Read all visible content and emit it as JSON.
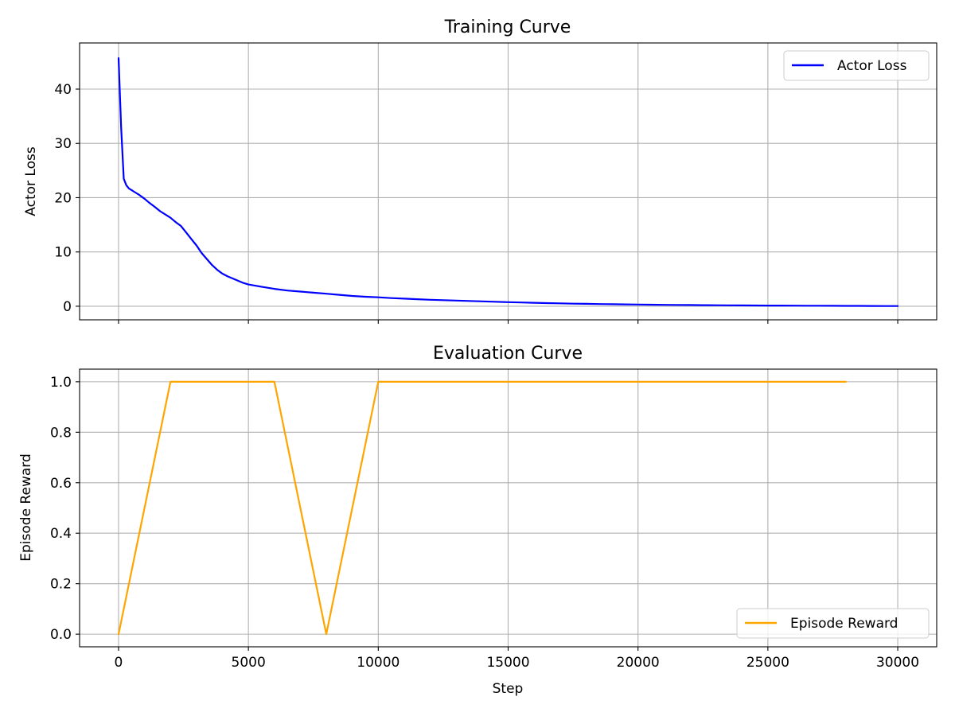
{
  "chart_data": [
    {
      "type": "line",
      "title": "Training Curve",
      "xlabel": "",
      "ylabel": "Actor Loss",
      "xlim": [
        -1500,
        31500
      ],
      "ylim": [
        -2.5,
        48.5
      ],
      "xticks": [
        0,
        5000,
        10000,
        15000,
        20000,
        25000,
        30000
      ],
      "xtick_labels_visible": false,
      "yticks": [
        0,
        10,
        20,
        30,
        40
      ],
      "ytick_labels": [
        "0",
        "10",
        "20",
        "30",
        "40"
      ],
      "grid": true,
      "legend": {
        "location": "top-right",
        "entries": [
          "Actor Loss"
        ]
      },
      "series": [
        {
          "name": "Actor Loss",
          "color": "#0000ff",
          "x": [
            0,
            100,
            200,
            300,
            400,
            500,
            600,
            800,
            1000,
            1200,
            1400,
            1600,
            1800,
            2000,
            2200,
            2400,
            2600,
            2800,
            3000,
            3200,
            3400,
            3600,
            3800,
            4000,
            4200,
            4400,
            4600,
            4800,
            5000,
            5500,
            6000,
            6500,
            7000,
            7500,
            8000,
            8500,
            9000,
            9500,
            10000,
            10500,
            11000,
            11500,
            12000,
            12500,
            13000,
            13500,
            14000,
            14500,
            15000,
            15500,
            16000,
            16500,
            17000,
            17500,
            18000,
            18500,
            19000,
            19500,
            20000,
            20500,
            21000,
            21500,
            22000,
            22500,
            23000,
            23500,
            24000,
            24500,
            25000,
            25500,
            26000,
            26500,
            27000,
            27500,
            28000,
            28500,
            29000,
            29500,
            30000
          ],
          "values": [
            45.7,
            33.0,
            23.5,
            22.3,
            21.7,
            21.4,
            21.1,
            20.5,
            19.8,
            19.0,
            18.3,
            17.5,
            16.9,
            16.3,
            15.5,
            14.8,
            13.6,
            12.4,
            11.2,
            9.8,
            8.7,
            7.6,
            6.7,
            6.0,
            5.5,
            5.1,
            4.7,
            4.3,
            4.0,
            3.6,
            3.2,
            2.9,
            2.7,
            2.5,
            2.3,
            2.1,
            1.9,
            1.75,
            1.65,
            1.5,
            1.4,
            1.3,
            1.2,
            1.12,
            1.05,
            0.98,
            0.9,
            0.82,
            0.76,
            0.7,
            0.64,
            0.58,
            0.53,
            0.48,
            0.44,
            0.4,
            0.37,
            0.34,
            0.31,
            0.28,
            0.26,
            0.24,
            0.22,
            0.2,
            0.18,
            0.17,
            0.15,
            0.14,
            0.13,
            0.12,
            0.11,
            0.1,
            0.09,
            0.08,
            0.07,
            0.06,
            0.05,
            0.04,
            0.03
          ]
        }
      ]
    },
    {
      "type": "line",
      "title": "Evaluation Curve",
      "xlabel": "Step",
      "ylabel": "Episode Reward",
      "xlim": [
        -1500,
        31500
      ],
      "ylim": [
        -0.05,
        1.05
      ],
      "xticks": [
        0,
        5000,
        10000,
        15000,
        20000,
        25000,
        30000
      ],
      "xtick_labels": [
        "0",
        "5000",
        "10000",
        "15000",
        "20000",
        "25000",
        "30000"
      ],
      "yticks": [
        0.0,
        0.2,
        0.4,
        0.6,
        0.8,
        1.0
      ],
      "ytick_labels": [
        "0.0",
        "0.2",
        "0.4",
        "0.6",
        "0.8",
        "1.0"
      ],
      "grid": true,
      "legend": {
        "location": "bottom-right",
        "entries": [
          "Episode Reward"
        ]
      },
      "series": [
        {
          "name": "Episode Reward",
          "color": "#ffa500",
          "x": [
            0,
            2000,
            4000,
            6000,
            8000,
            10000,
            12000,
            14000,
            16000,
            18000,
            20000,
            22000,
            24000,
            26000,
            28000
          ],
          "values": [
            0.0,
            1.0,
            1.0,
            1.0,
            0.0,
            1.0,
            1.0,
            1.0,
            1.0,
            1.0,
            1.0,
            1.0,
            1.0,
            1.0,
            1.0
          ]
        }
      ]
    }
  ]
}
